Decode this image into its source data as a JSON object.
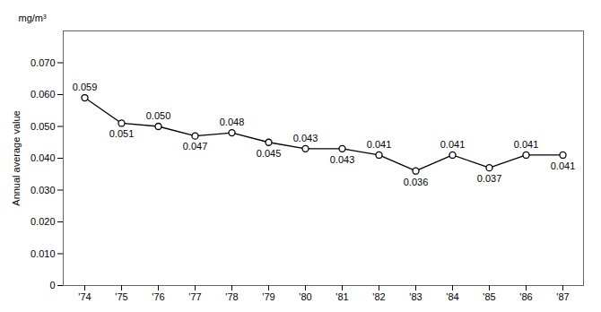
{
  "chart_data": {
    "type": "line",
    "categories": [
      "'74",
      "'75",
      "'76",
      "'77",
      "'78",
      "'79",
      "'80",
      "'81",
      "'82",
      "'83",
      "'84",
      "'85",
      "'86",
      "'87"
    ],
    "values": [
      0.059,
      0.051,
      0.05,
      0.047,
      0.048,
      0.045,
      0.043,
      0.043,
      0.041,
      0.036,
      0.041,
      0.037,
      0.041,
      0.041
    ],
    "value_labels": [
      "0.059",
      "0.051",
      "0.050",
      "0.047",
      "0.048",
      "0.045",
      "0.043",
      "0.043",
      "0.041",
      "0.036",
      "0.041",
      "0.037",
      "0.041",
      "0.041"
    ],
    "data_labels": true,
    "y_label": "Annual average value",
    "annotations": [
      "mg/m³"
    ],
    "ylim": [
      0,
      0.08
    ],
    "yticks": [
      0,
      {
        "value": 0.01,
        "label": "0.010"
      },
      {
        "value": 0.02,
        "label": "0.020"
      },
      {
        "value": 0.03,
        "label": "0.030"
      },
      {
        "value": 0.04,
        "label": "0.040"
      },
      {
        "value": 0.05,
        "label": "0.050"
      },
      {
        "value": 0.06,
        "label": "0.060"
      },
      {
        "value": 0.07,
        "label": "0.070"
      }
    ],
    "color": "#000000",
    "marker": "circle",
    "grid": false
  }
}
